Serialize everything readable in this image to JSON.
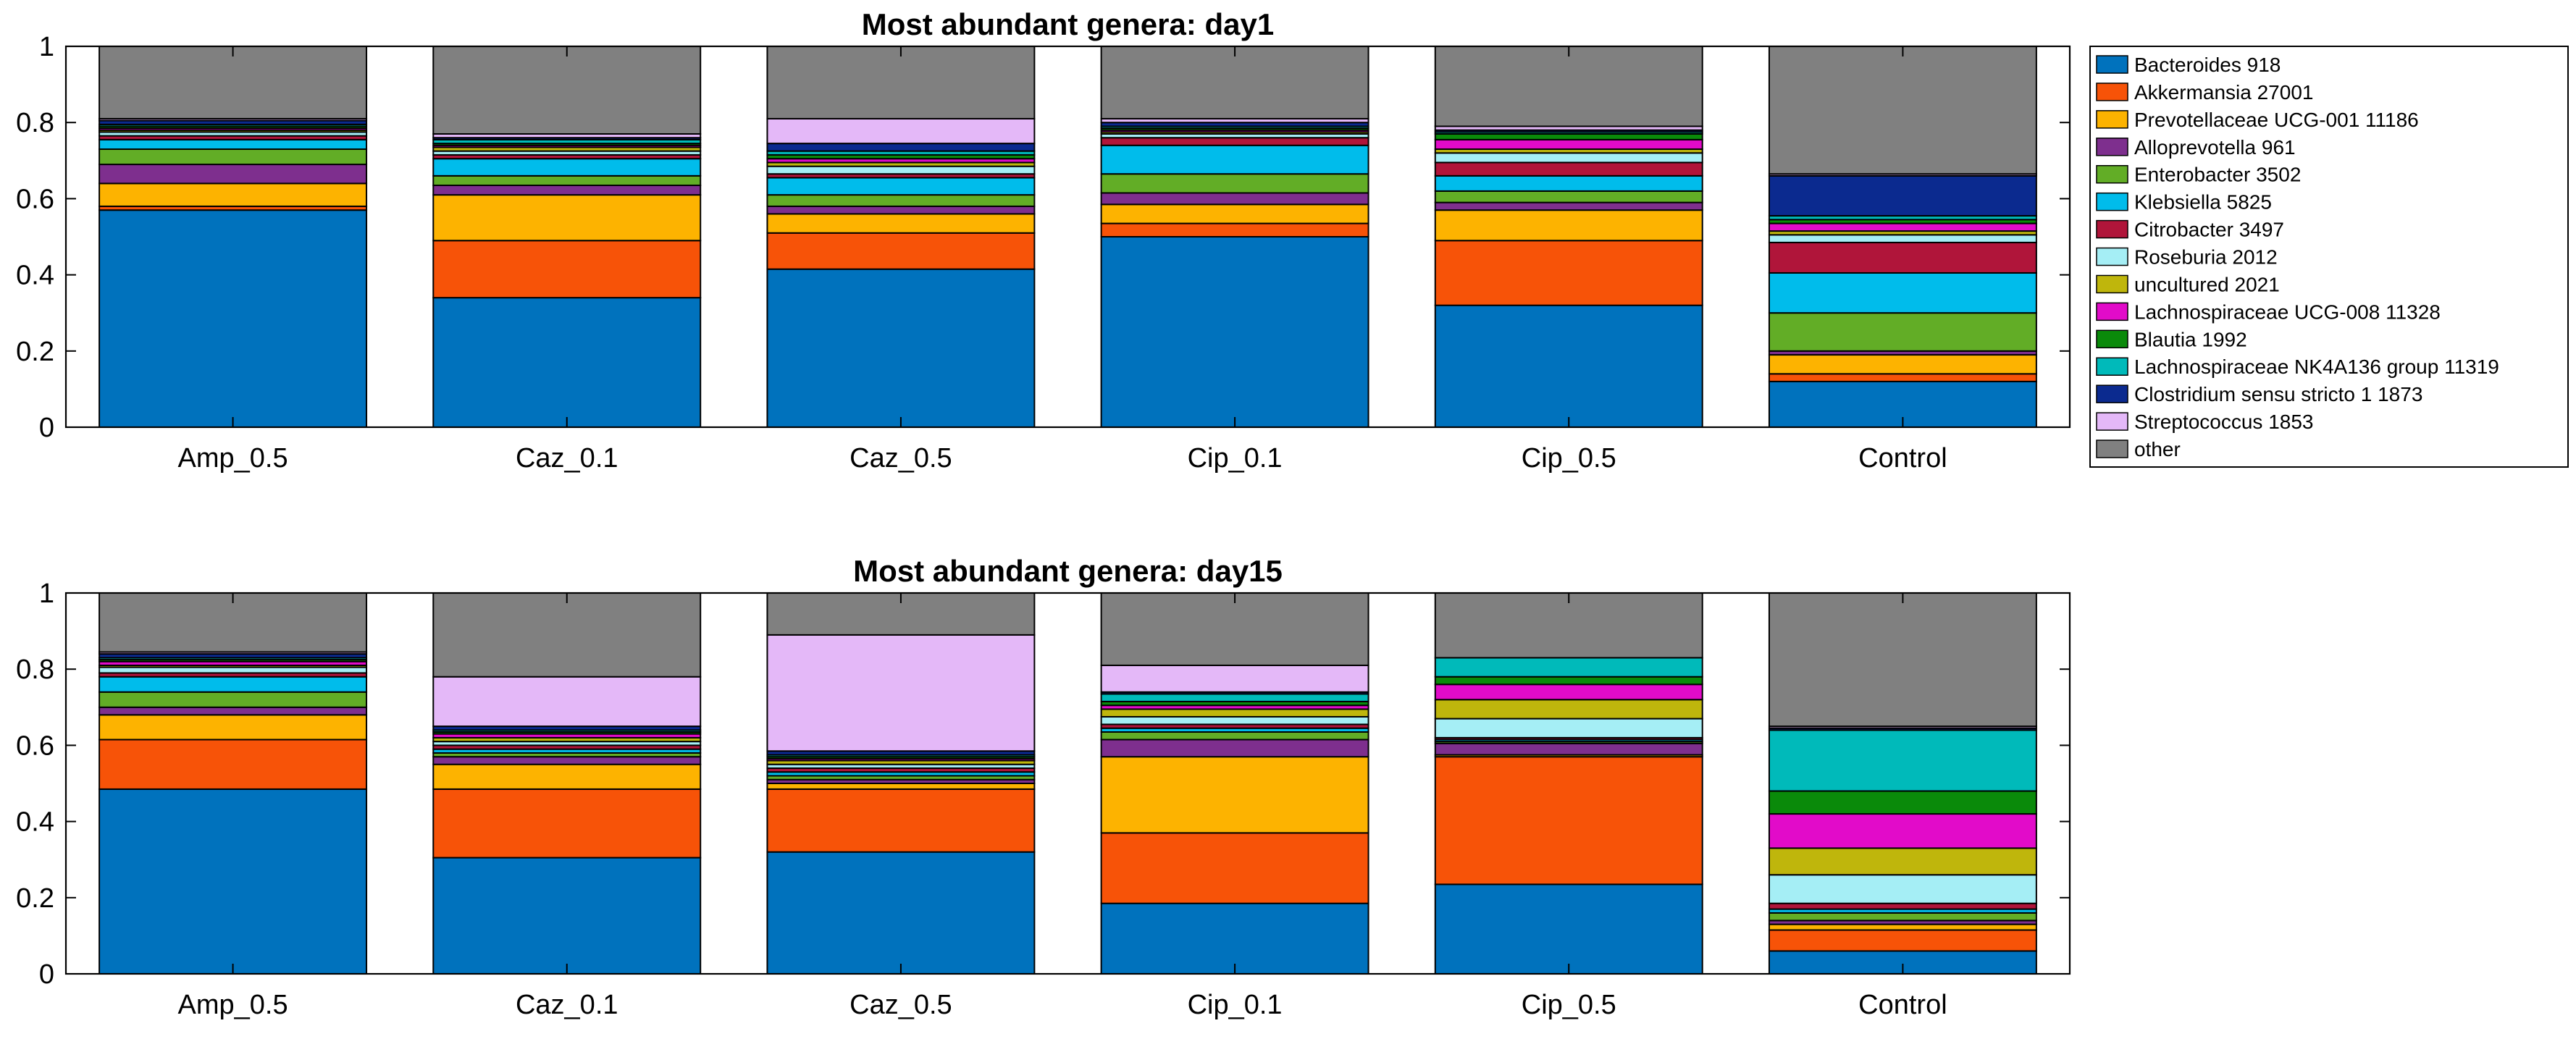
{
  "chart_data": [
    {
      "type": "bar",
      "stacked": true,
      "title": "Most abundant genera: day1",
      "categories": [
        "Amp_0.5",
        "Caz_0.1",
        "Caz_0.5",
        "Cip_0.1",
        "Cip_0.5",
        "Control"
      ],
      "xlabel": "",
      "ylabel": "",
      "ylim": [
        0,
        1
      ],
      "yticks": [
        0,
        0.2,
        0.4,
        0.6,
        0.8,
        1
      ],
      "ytick_labels": [
        "0",
        "0.2",
        "0.4",
        "0.6",
        "0.8",
        "1"
      ],
      "grid": false,
      "legend": "outside-right",
      "series": [
        {
          "name": "Bacteroides 918",
          "color": "#0072BD",
          "values": [
            0.57,
            0.34,
            0.415,
            0.5,
            0.32,
            0.12
          ]
        },
        {
          "name": "Akkermansia 27001",
          "color": "#F75308",
          "values": [
            0.01,
            0.15,
            0.095,
            0.035,
            0.17,
            0.02
          ]
        },
        {
          "name": "Prevotellaceae UCG-001 11186",
          "color": "#FDB300",
          "values": [
            0.06,
            0.12,
            0.05,
            0.05,
            0.08,
            0.05
          ]
        },
        {
          "name": "Alloprevotella 961",
          "color": "#7E2F8E",
          "values": [
            0.05,
            0.025,
            0.02,
            0.03,
            0.02,
            0.01
          ]
        },
        {
          "name": "Enterobacter 3502",
          "color": "#62AD26",
          "values": [
            0.04,
            0.025,
            0.03,
            0.05,
            0.03,
            0.1
          ]
        },
        {
          "name": "Klebsiella 5825",
          "color": "#00BCEB",
          "values": [
            0.025,
            0.045,
            0.045,
            0.075,
            0.04,
            0.105
          ]
        },
        {
          "name": "Citrobacter 3497",
          "color": "#B0153A",
          "values": [
            0.01,
            0.01,
            0.01,
            0.02,
            0.035,
            0.08
          ]
        },
        {
          "name": "Roseburia 2012",
          "color": "#A5EEF5",
          "values": [
            0.01,
            0.01,
            0.02,
            0.01,
            0.025,
            0.02
          ]
        },
        {
          "name": "uncultured 2021",
          "color": "#BFB60C",
          "values": [
            0.005,
            0.01,
            0.01,
            0.005,
            0.01,
            0.01
          ]
        },
        {
          "name": "Lachnospiraceae UCG-008 11328",
          "color": "#E20BC9",
          "values": [
            0.005,
            0.005,
            0.01,
            0.005,
            0.025,
            0.02
          ]
        },
        {
          "name": "Blautia 1992",
          "color": "#0A8A0A",
          "values": [
            0.005,
            0.005,
            0.01,
            0.005,
            0.015,
            0.01
          ]
        },
        {
          "name": "Lachnospiraceae NK4A136 group 11319",
          "color": "#00BABA",
          "values": [
            0.005,
            0.01,
            0.01,
            0.005,
            0.005,
            0.01
          ]
        },
        {
          "name": "Clostridium sensu stricto 1 1873",
          "color": "#0B2A8F",
          "values": [
            0.01,
            0.005,
            0.02,
            0.01,
            0.005,
            0.105
          ]
        },
        {
          "name": "Streptococcus 1853",
          "color": "#E4B8F8",
          "values": [
            0.005,
            0.01,
            0.065,
            0.01,
            0.01,
            0.005
          ]
        },
        {
          "name": "other",
          "color": "#808080",
          "values": [
            0.19,
            0.23,
            0.19,
            0.19,
            0.21,
            0.335
          ]
        }
      ]
    },
    {
      "type": "bar",
      "stacked": true,
      "title": "Most abundant genera: day15",
      "categories": [
        "Amp_0.5",
        "Caz_0.1",
        "Caz_0.5",
        "Cip_0.1",
        "Cip_0.5",
        "Control"
      ],
      "xlabel": "",
      "ylabel": "",
      "ylim": [
        0,
        1
      ],
      "yticks": [
        0,
        0.2,
        0.4,
        0.6,
        0.8,
        1
      ],
      "ytick_labels": [
        "0",
        "0.2",
        "0.4",
        "0.6",
        "0.8",
        "1"
      ],
      "grid": false,
      "legend": "none",
      "series": [
        {
          "color": "#0072BD",
          "values": [
            0.485,
            0.305,
            0.32,
            0.185,
            0.235,
            0.06
          ]
        },
        {
          "color": "#F75308",
          "values": [
            0.13,
            0.18,
            0.165,
            0.185,
            0.335,
            0.055
          ]
        },
        {
          "color": "#FDB300",
          "values": [
            0.065,
            0.065,
            0.015,
            0.2,
            0.005,
            0.015
          ]
        },
        {
          "color": "#7E2F8E",
          "values": [
            0.02,
            0.02,
            0.01,
            0.045,
            0.03,
            0.01
          ]
        },
        {
          "color": "#62AD26",
          "values": [
            0.04,
            0.01,
            0.01,
            0.02,
            0.005,
            0.02
          ]
        },
        {
          "color": "#00BCEB",
          "values": [
            0.04,
            0.01,
            0.01,
            0.01,
            0.005,
            0.01
          ]
        },
        {
          "color": "#B0153A",
          "values": [
            0.01,
            0.01,
            0.01,
            0.01,
            0.005,
            0.015
          ]
        },
        {
          "color": "#A5EEF5",
          "values": [
            0.015,
            0.01,
            0.01,
            0.02,
            0.05,
            0.075
          ]
        },
        {
          "color": "#BFB60C",
          "values": [
            0.005,
            0.01,
            0.01,
            0.02,
            0.05,
            0.07
          ]
        },
        {
          "color": "#E20BC9",
          "values": [
            0.01,
            0.01,
            0.005,
            0.01,
            0.04,
            0.09
          ]
        },
        {
          "color": "#0A8A0A",
          "values": [
            0.005,
            0.005,
            0.005,
            0.01,
            0.02,
            0.06
          ]
        },
        {
          "color": "#00BABA",
          "values": [
            0.005,
            0.005,
            0.005,
            0.02,
            0.05,
            0.16
          ]
        },
        {
          "color": "#0B2A8F",
          "values": [
            0.01,
            0.01,
            0.01,
            0.005,
            0.0,
            0.005
          ]
        },
        {
          "color": "#E4B8F8",
          "values": [
            0.005,
            0.13,
            0.305,
            0.07,
            0.0,
            0.005
          ]
        },
        {
          "color": "#808080",
          "values": [
            0.155,
            0.22,
            0.11,
            0.19,
            0.17,
            0.35
          ]
        }
      ]
    }
  ]
}
